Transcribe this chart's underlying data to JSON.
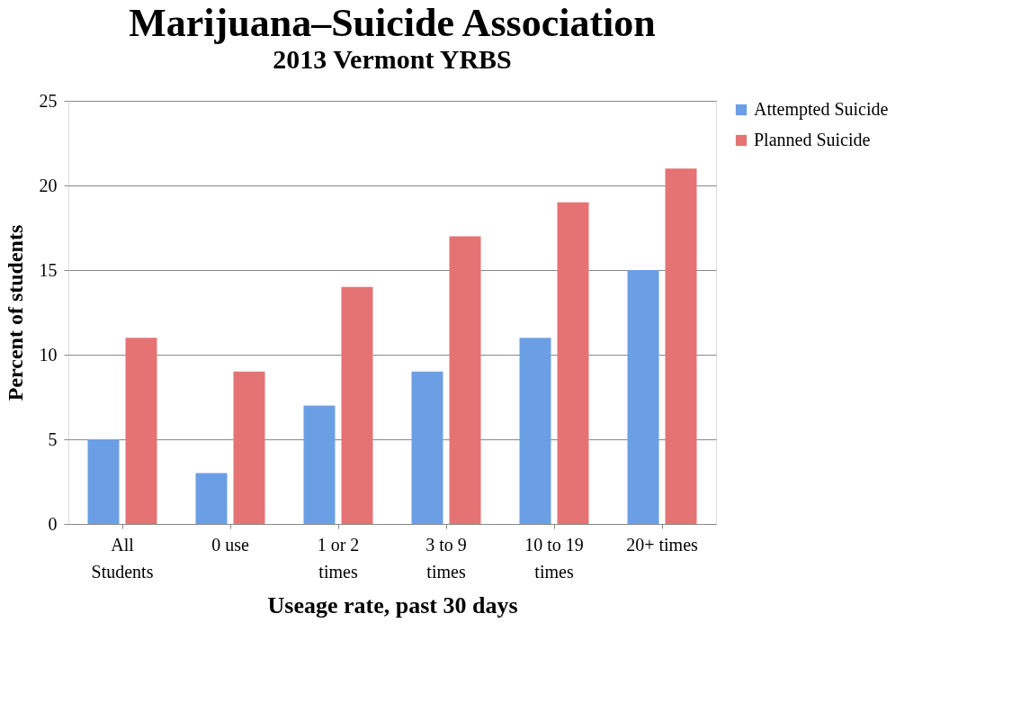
{
  "chart_data": {
    "type": "bar",
    "title": "Marijuana–Suicide Association",
    "subtitle": "2013 Vermont YRBS",
    "xlabel": "Useage rate, past 30 days",
    "ylabel": "Percent of students",
    "categories": [
      "All Students",
      "0 use",
      "1 or 2 times",
      "3 to 9 times",
      "10 to 19 times",
      "20+ times"
    ],
    "series": [
      {
        "name": "Attempted Suicide",
        "color": "#6a9fe6",
        "values": [
          5,
          3,
          7,
          9,
          11,
          15
        ]
      },
      {
        "name": "Planned Suicide",
        "color": "#e67373",
        "values": [
          11,
          9,
          14,
          17,
          19,
          21
        ]
      }
    ],
    "ylim": [
      0,
      25
    ],
    "yticks": [
      0,
      5,
      10,
      15,
      20,
      25
    ],
    "grid": "y",
    "legend": "right"
  }
}
